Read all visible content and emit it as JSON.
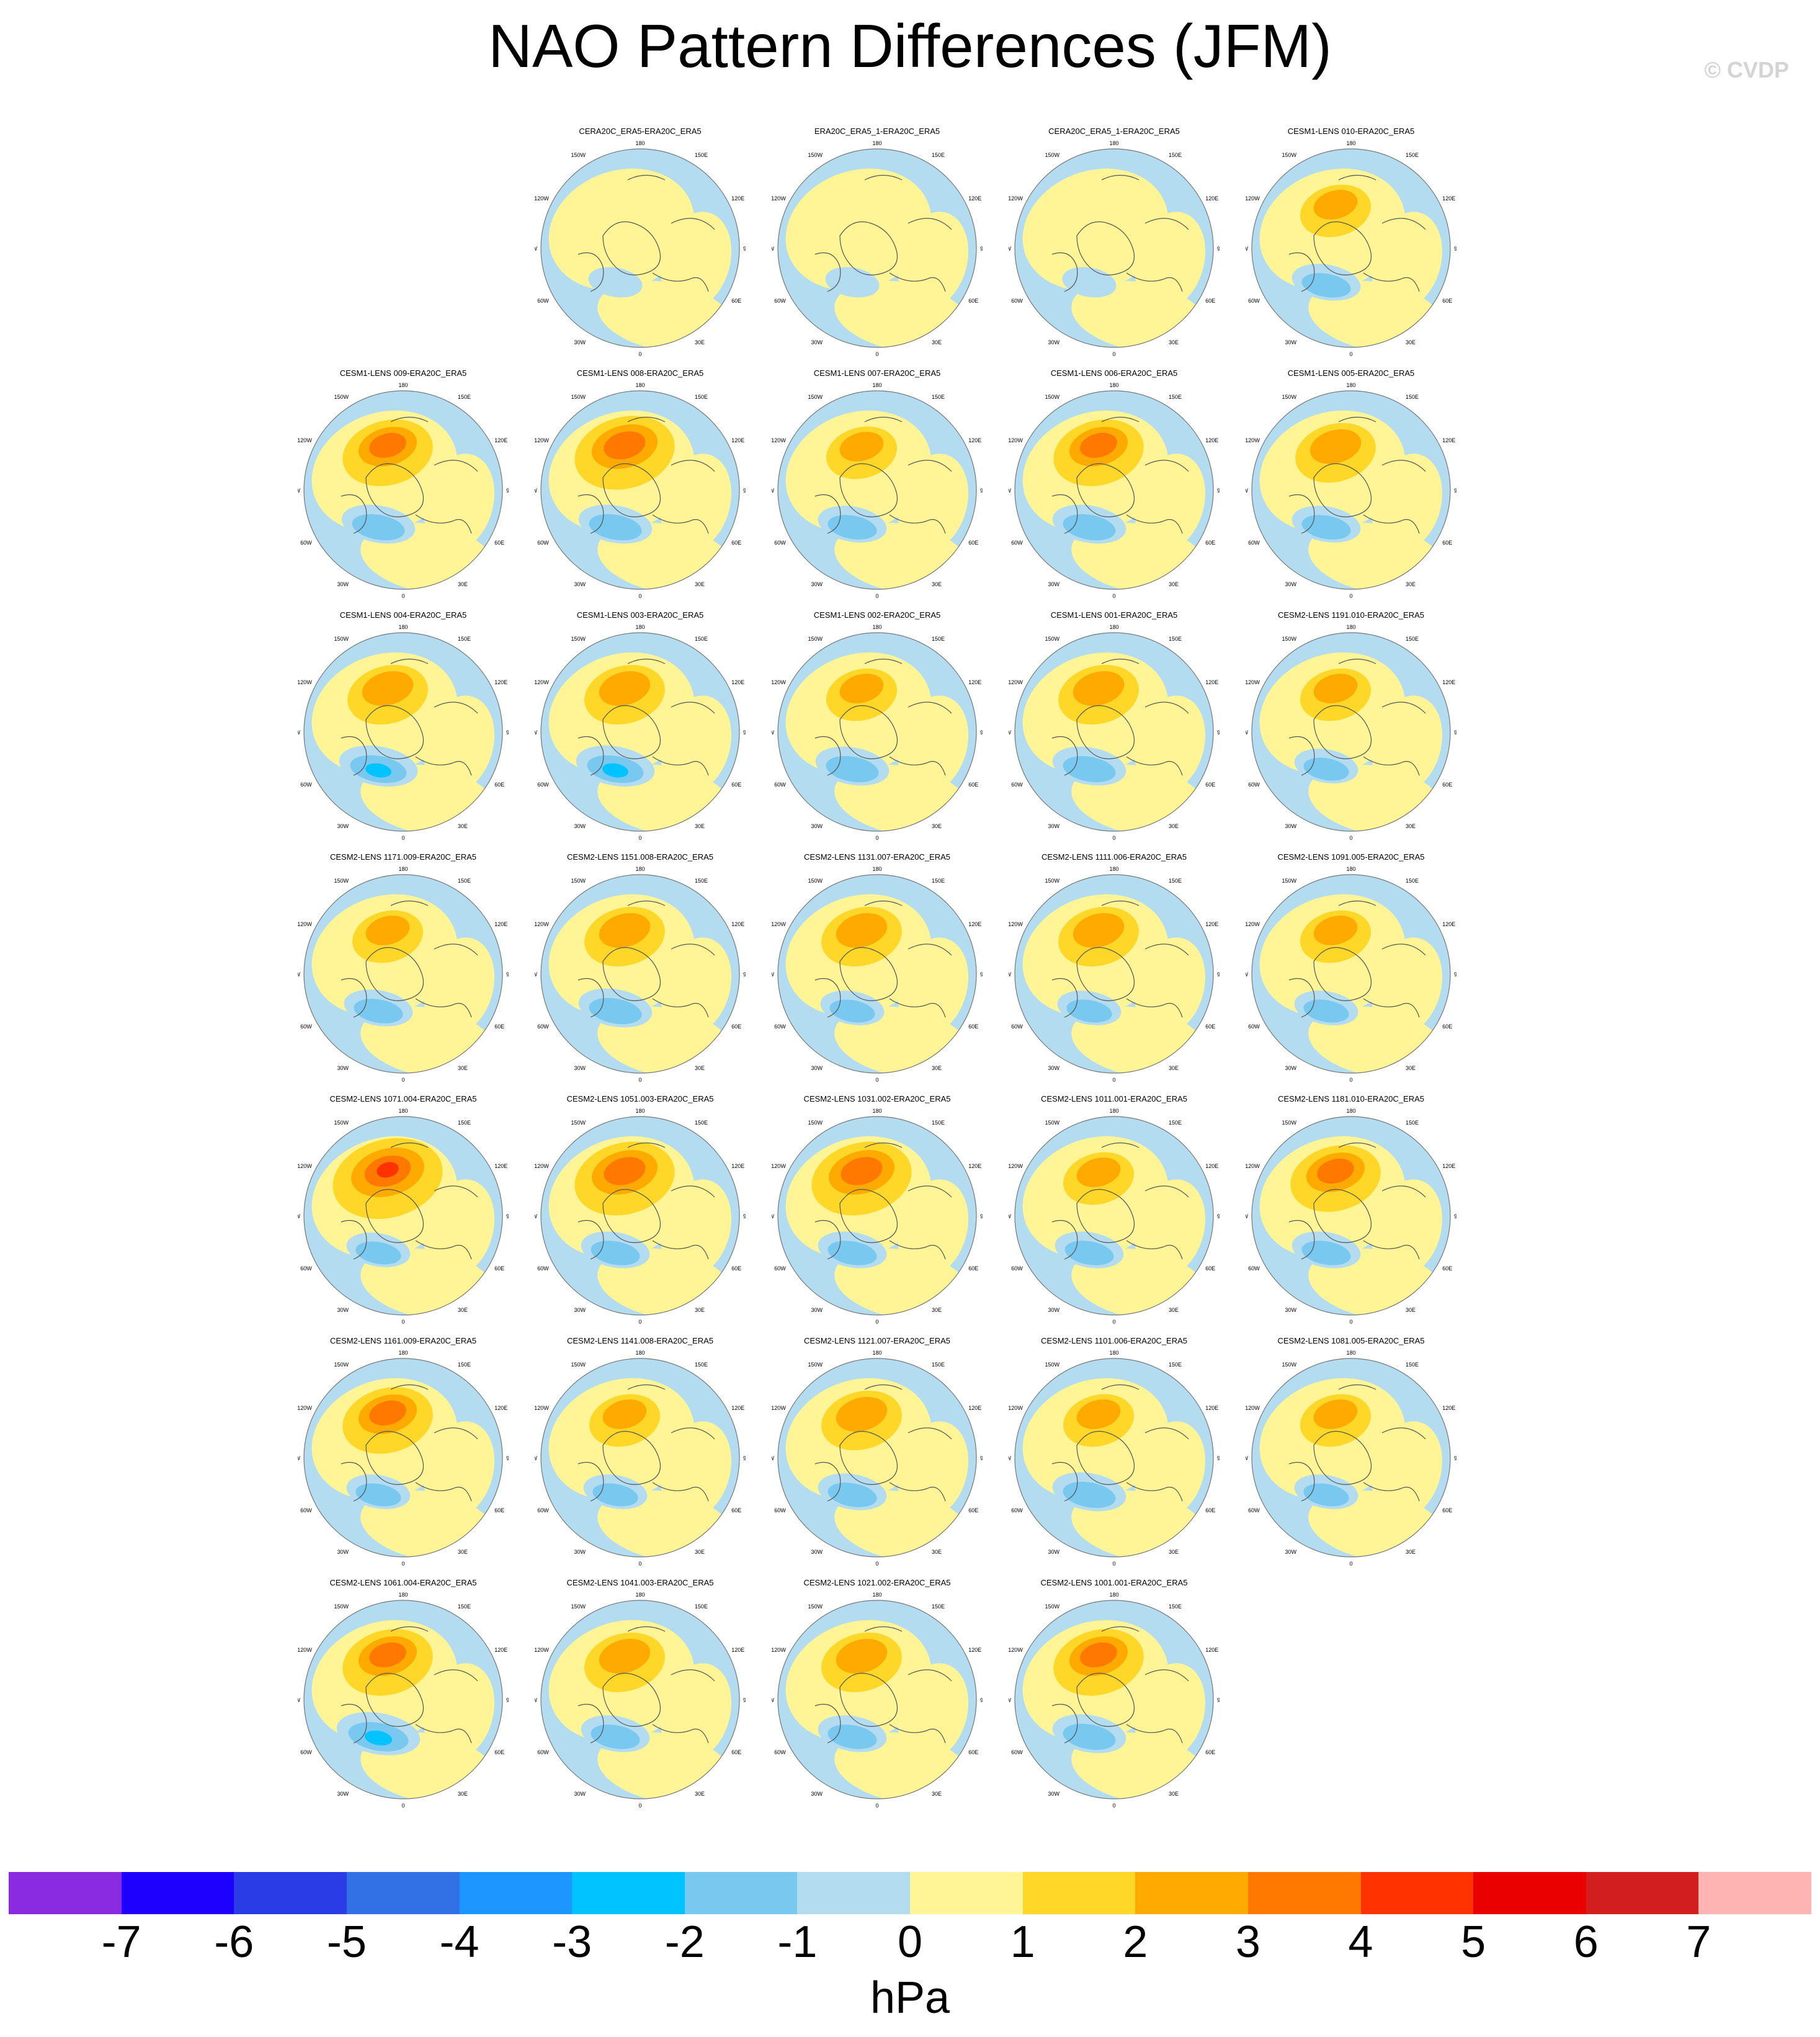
{
  "title": "NAO Pattern Differences (JFM)",
  "watermark": "© CVDP",
  "colorbar": {
    "colors": [
      "#8a2be2",
      "#1e00ff",
      "#2a3ce6",
      "#3270e6",
      "#1e96ff",
      "#00c3ff",
      "#78c8f0",
      "#b4dcf0",
      "#fff596",
      "#ffd728",
      "#ffaa00",
      "#ff7800",
      "#ff3200",
      "#eb0000",
      "#d21e1e",
      "#ffb4b4"
    ],
    "tick_labels": [
      "-7",
      "-6",
      "-5",
      "-4",
      "-3",
      "-2",
      "-1",
      "0",
      "1",
      "2",
      "3",
      "4",
      "5",
      "6",
      "7"
    ],
    "unit": "hPa"
  },
  "map_labels": {
    "top": "180",
    "bottom": "0",
    "left": "90W",
    "right": "90E",
    "upper_left": "150W",
    "upper_right": "150E",
    "mid_upper_left": "120W",
    "mid_upper_right": "120E",
    "mid_lower_left": "60W",
    "mid_lower_right": "60E",
    "lower_left": "30W",
    "lower_right": "30E"
  },
  "panels": [
    {
      "title": "CERA20C_ERA5-ERA20C_ERA5",
      "pos_intensity": 0.2,
      "neg_intensity": 0.1
    },
    {
      "title": "ERA20C_ERA5_1-ERA20C_ERA5",
      "pos_intensity": 0.2,
      "neg_intensity": 0.1
    },
    {
      "title": "CERA20C_ERA5_1-ERA20C_ERA5",
      "pos_intensity": 0.2,
      "neg_intensity": 0.1
    },
    {
      "title": "CESM1-LENS 010-ERA20C_ERA5",
      "pos_intensity": 0.6,
      "neg_intensity": 0.4
    },
    {
      "title": "CESM1-LENS 009-ERA20C_ERA5",
      "pos_intensity": 0.8,
      "neg_intensity": 0.5
    },
    {
      "title": "CESM1-LENS 008-ERA20C_ERA5",
      "pos_intensity": 0.9,
      "neg_intensity": 0.5
    },
    {
      "title": "CESM1-LENS 007-ERA20C_ERA5",
      "pos_intensity": 0.6,
      "neg_intensity": 0.4
    },
    {
      "title": "CESM1-LENS 006-ERA20C_ERA5",
      "pos_intensity": 0.8,
      "neg_intensity": 0.5
    },
    {
      "title": "CESM1-LENS 005-ERA20C_ERA5",
      "pos_intensity": 0.7,
      "neg_intensity": 0.4
    },
    {
      "title": "CESM1-LENS 004-ERA20C_ERA5",
      "pos_intensity": 0.7,
      "neg_intensity": 0.6
    },
    {
      "title": "CESM1-LENS 003-ERA20C_ERA5",
      "pos_intensity": 0.7,
      "neg_intensity": 0.6
    },
    {
      "title": "CESM1-LENS 002-ERA20C_ERA5",
      "pos_intensity": 0.6,
      "neg_intensity": 0.5
    },
    {
      "title": "CESM1-LENS 001-ERA20C_ERA5",
      "pos_intensity": 0.7,
      "neg_intensity": 0.5
    },
    {
      "title": "CESM2-LENS 1191.010-ERA20C_ERA5",
      "pos_intensity": 0.6,
      "neg_intensity": 0.3
    },
    {
      "title": "CESM2-LENS 1171.009-ERA20C_ERA5",
      "pos_intensity": 0.6,
      "neg_intensity": 0.4
    },
    {
      "title": "CESM2-LENS 1151.008-ERA20C_ERA5",
      "pos_intensity": 0.7,
      "neg_intensity": 0.5
    },
    {
      "title": "CESM2-LENS 1131.007-ERA20C_ERA5",
      "pos_intensity": 0.7,
      "neg_intensity": 0.3
    },
    {
      "title": "CESM2-LENS 1111.006-ERA20C_ERA5",
      "pos_intensity": 0.7,
      "neg_intensity": 0.3
    },
    {
      "title": "CESM2-LENS 1091.005-ERA20C_ERA5",
      "pos_intensity": 0.6,
      "neg_intensity": 0.3
    },
    {
      "title": "CESM2-LENS 1071.004-ERA20C_ERA5",
      "pos_intensity": 1.0,
      "neg_intensity": 0.3
    },
    {
      "title": "CESM2-LENS 1051.003-ERA20C_ERA5",
      "pos_intensity": 0.9,
      "neg_intensity": 0.4
    },
    {
      "title": "CESM2-LENS 1031.002-ERA20C_ERA5",
      "pos_intensity": 0.9,
      "neg_intensity": 0.4
    },
    {
      "title": "CESM2-LENS 1011.001-ERA20C_ERA5",
      "pos_intensity": 0.6,
      "neg_intensity": 0.4
    },
    {
      "title": "CESM2-LENS 1181.010-ERA20C_ERA5",
      "pos_intensity": 0.8,
      "neg_intensity": 0.4
    },
    {
      "title": "CESM2-LENS 1161.009-ERA20C_ERA5",
      "pos_intensity": 0.8,
      "neg_intensity": 0.3
    },
    {
      "title": "CESM2-LENS 1141.008-ERA20C_ERA5",
      "pos_intensity": 0.6,
      "neg_intensity": 0.3
    },
    {
      "title": "CESM2-LENS 1121.007-ERA20C_ERA5",
      "pos_intensity": 0.7,
      "neg_intensity": 0.4
    },
    {
      "title": "CESM2-LENS 1101.006-ERA20C_ERA5",
      "pos_intensity": 0.6,
      "neg_intensity": 0.5
    },
    {
      "title": "CESM2-LENS 1081.005-ERA20C_ERA5",
      "pos_intensity": 0.6,
      "neg_intensity": 0.3
    },
    {
      "title": "CESM2-LENS 1061.004-ERA20C_ERA5",
      "pos_intensity": 0.8,
      "neg_intensity": 0.7
    },
    {
      "title": "CESM2-LENS 1041.003-ERA20C_ERA5",
      "pos_intensity": 0.7,
      "neg_intensity": 0.4
    },
    {
      "title": "CESM2-LENS 1021.002-ERA20C_ERA5",
      "pos_intensity": 0.7,
      "neg_intensity": 0.4
    },
    {
      "title": "CESM2-LENS 1001.001-ERA20C_ERA5",
      "pos_intensity": 0.8,
      "neg_intensity": 0.5
    }
  ]
}
